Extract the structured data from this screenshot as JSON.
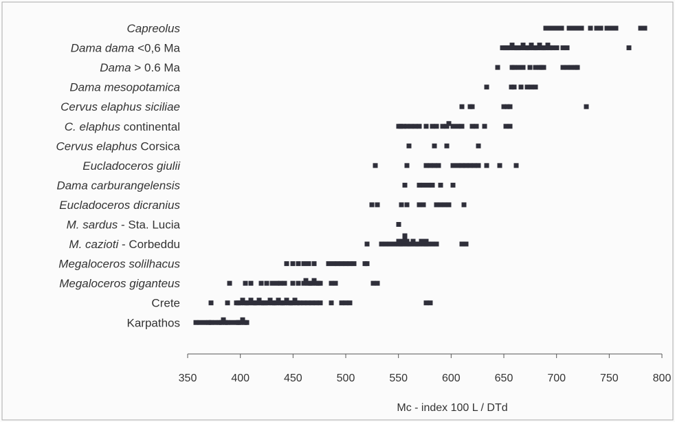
{
  "chart_data": {
    "type": "scatter",
    "title": "",
    "xlabel": "Mc - index 100 L / DTd",
    "ylabel": "",
    "xlim": [
      350,
      800
    ],
    "x_ticks": [
      350,
      400,
      450,
      500,
      550,
      600,
      650,
      700,
      750,
      800
    ],
    "grid": false,
    "legend": "none",
    "marker_color": "#2f2f3a",
    "categories": [
      {
        "label": [
          {
            "text": "Capreolus",
            "italic": true
          }
        ],
        "values": [
          690,
          693,
          697,
          700,
          705,
          712,
          716,
          720,
          724,
          732,
          738,
          742,
          748,
          752,
          756,
          780,
          784
        ]
      },
      {
        "label": [
          {
            "text": "Dama dama",
            "italic": true
          },
          {
            "text": " <0,6 Ma",
            "italic": false
          }
        ],
        "values": [
          649,
          651,
          653,
          656,
          658,
          660,
          662,
          664,
          666,
          668,
          670,
          672,
          674,
          676,
          678,
          680,
          682,
          684,
          686,
          688,
          690,
          692,
          694,
          696,
          700,
          706,
          710,
          769
        ]
      },
      {
        "label": [
          {
            "text": "Dama",
            "italic": true
          },
          {
            "text": " > 0.6 Ma",
            "italic": false
          }
        ],
        "values": [
          644,
          658,
          660,
          664,
          668,
          675,
          680,
          684,
          686,
          688,
          706,
          710,
          714,
          718,
          720
        ]
      },
      {
        "label": [
          {
            "text": "Dama mesopotamica",
            "italic": true
          }
        ],
        "values": [
          634,
          657,
          660,
          666,
          672,
          676,
          680
        ]
      },
      {
        "label": [
          {
            "text": "Cervus elaphus siciliae",
            "italic": true
          }
        ],
        "values": [
          610,
          618,
          620,
          650,
          653,
          656,
          728
        ]
      },
      {
        "label": [
          {
            "text": "C. elaphus",
            "italic": true
          },
          {
            "text": "  continental",
            "italic": false
          }
        ],
        "values": [
          550,
          552,
          555,
          558,
          562,
          566,
          570,
          576,
          582,
          586,
          592,
          596,
          598,
          602,
          606,
          610,
          620,
          624,
          632,
          652,
          656
        ]
      },
      {
        "label": [
          {
            "text": "Cervus elaphus",
            "italic": true
          },
          {
            "text": " Corsica",
            "italic": false
          }
        ],
        "values": [
          560,
          584,
          596,
          626
        ]
      },
      {
        "label": [
          {
            "text": "Eucladoceros giulii",
            "italic": true
          }
        ],
        "values": [
          528,
          558,
          576,
          580,
          584,
          588,
          602,
          606,
          610,
          614,
          618,
          622,
          626,
          634,
          646,
          662
        ]
      },
      {
        "label": [
          {
            "text": "Dama carburangelensis",
            "italic": true
          }
        ],
        "values": [
          556,
          570,
          574,
          578,
          582,
          590,
          602
        ]
      },
      {
        "label": [
          {
            "text": "Eucladoceros dicranius",
            "italic": true
          }
        ],
        "values": [
          525,
          530,
          553,
          558,
          570,
          574,
          586,
          590,
          594,
          598,
          612
        ]
      },
      {
        "label": [
          {
            "text": "M. sardus",
            "italic": true
          },
          {
            "text": " - Sta. Lucia",
            "italic": false
          }
        ],
        "values": [
          550
        ]
      },
      {
        "label": [
          {
            "text": "M. cazioti",
            "italic": true
          },
          {
            "text": " - Corbeddu",
            "italic": false
          }
        ],
        "values": [
          520,
          534,
          538,
          542,
          546,
          550,
          550,
          552,
          554,
          554,
          556,
          556,
          558,
          558,
          560,
          562,
          564,
          566,
          568,
          570,
          572,
          574,
          576,
          576,
          578,
          582,
          586,
          610,
          614
        ]
      },
      {
        "label": [
          {
            "text": "Megaloceros solilhacus",
            "italic": true
          }
        ],
        "values": [
          444,
          450,
          455,
          460,
          465,
          470,
          484,
          488,
          492,
          496,
          500,
          504,
          508,
          518,
          520
        ]
      },
      {
        "label": [
          {
            "text": "Megaloceros giganteus",
            "italic": true
          }
        ],
        "values": [
          390,
          405,
          410,
          420,
          425,
          430,
          435,
          438,
          442,
          450,
          455,
          460,
          462,
          464,
          466,
          468,
          470,
          472,
          474,
          476,
          486,
          490,
          526,
          530
        ]
      },
      {
        "label": [
          {
            "text": "Crete",
            "italic": false
          }
        ],
        "values": [
          372,
          388,
          396,
          398,
          400,
          402,
          404,
          406,
          408,
          410,
          412,
          414,
          416,
          418,
          420,
          422,
          424,
          426,
          428,
          430,
          432,
          434,
          436,
          438,
          440,
          442,
          444,
          446,
          448,
          450,
          452,
          454,
          456,
          460,
          464,
          468,
          472,
          476,
          486,
          496,
          500,
          504,
          576,
          580
        ]
      },
      {
        "label": [
          {
            "text": "Karpathos",
            "italic": false
          }
        ],
        "values": [
          358,
          362,
          366,
          370,
          372,
          376,
          380,
          382,
          384,
          386,
          388,
          392,
          396,
          398,
          400,
          402,
          404,
          406
        ]
      }
    ]
  }
}
